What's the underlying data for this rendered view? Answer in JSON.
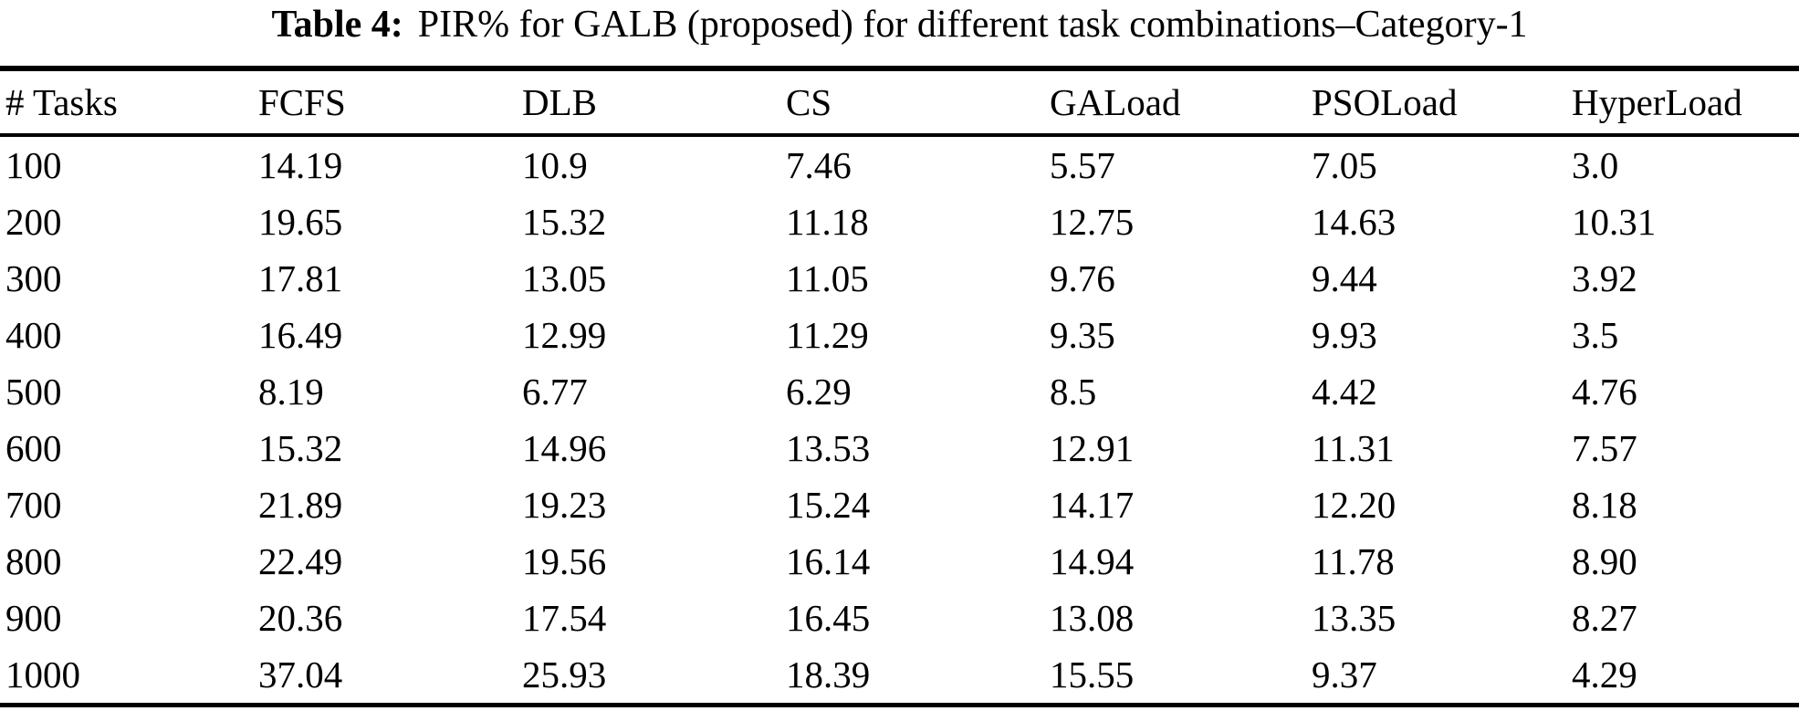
{
  "title": {
    "label": "Table 4:",
    "text": "PIR% for GALB (proposed) for different task combinations–Category-1"
  },
  "table": {
    "columns": [
      "# Tasks",
      "FCFS",
      "DLB",
      "CS",
      "GALoad",
      "PSOLoad",
      "HyperLoad"
    ],
    "rows": [
      [
        "100",
        "14.19",
        "10.9",
        "7.46",
        "5.57",
        "7.05",
        "3.0"
      ],
      [
        "200",
        "19.65",
        "15.32",
        "11.18",
        "12.75",
        "14.63",
        "10.31"
      ],
      [
        "300",
        "17.81",
        "13.05",
        "11.05",
        "9.76",
        "9.44",
        "3.92"
      ],
      [
        "400",
        "16.49",
        "12.99",
        "11.29",
        "9.35",
        "9.93",
        "3.5"
      ],
      [
        "500",
        "8.19",
        "6.77",
        "6.29",
        "8.5",
        "4.42",
        "4.76"
      ],
      [
        "600",
        "15.32",
        "14.96",
        "13.53",
        "12.91",
        "11.31",
        "7.57"
      ],
      [
        "700",
        "21.89",
        "19.23",
        "15.24",
        "14.17",
        "12.20",
        "8.18"
      ],
      [
        "800",
        "22.49",
        "19.56",
        "16.14",
        "14.94",
        "11.78",
        "8.90"
      ],
      [
        "900",
        "20.36",
        "17.54",
        "16.45",
        "13.08",
        "13.35",
        "8.27"
      ],
      [
        "1000",
        "37.04",
        "25.93",
        "18.39",
        "15.55",
        "9.37",
        "4.29"
      ]
    ]
  }
}
